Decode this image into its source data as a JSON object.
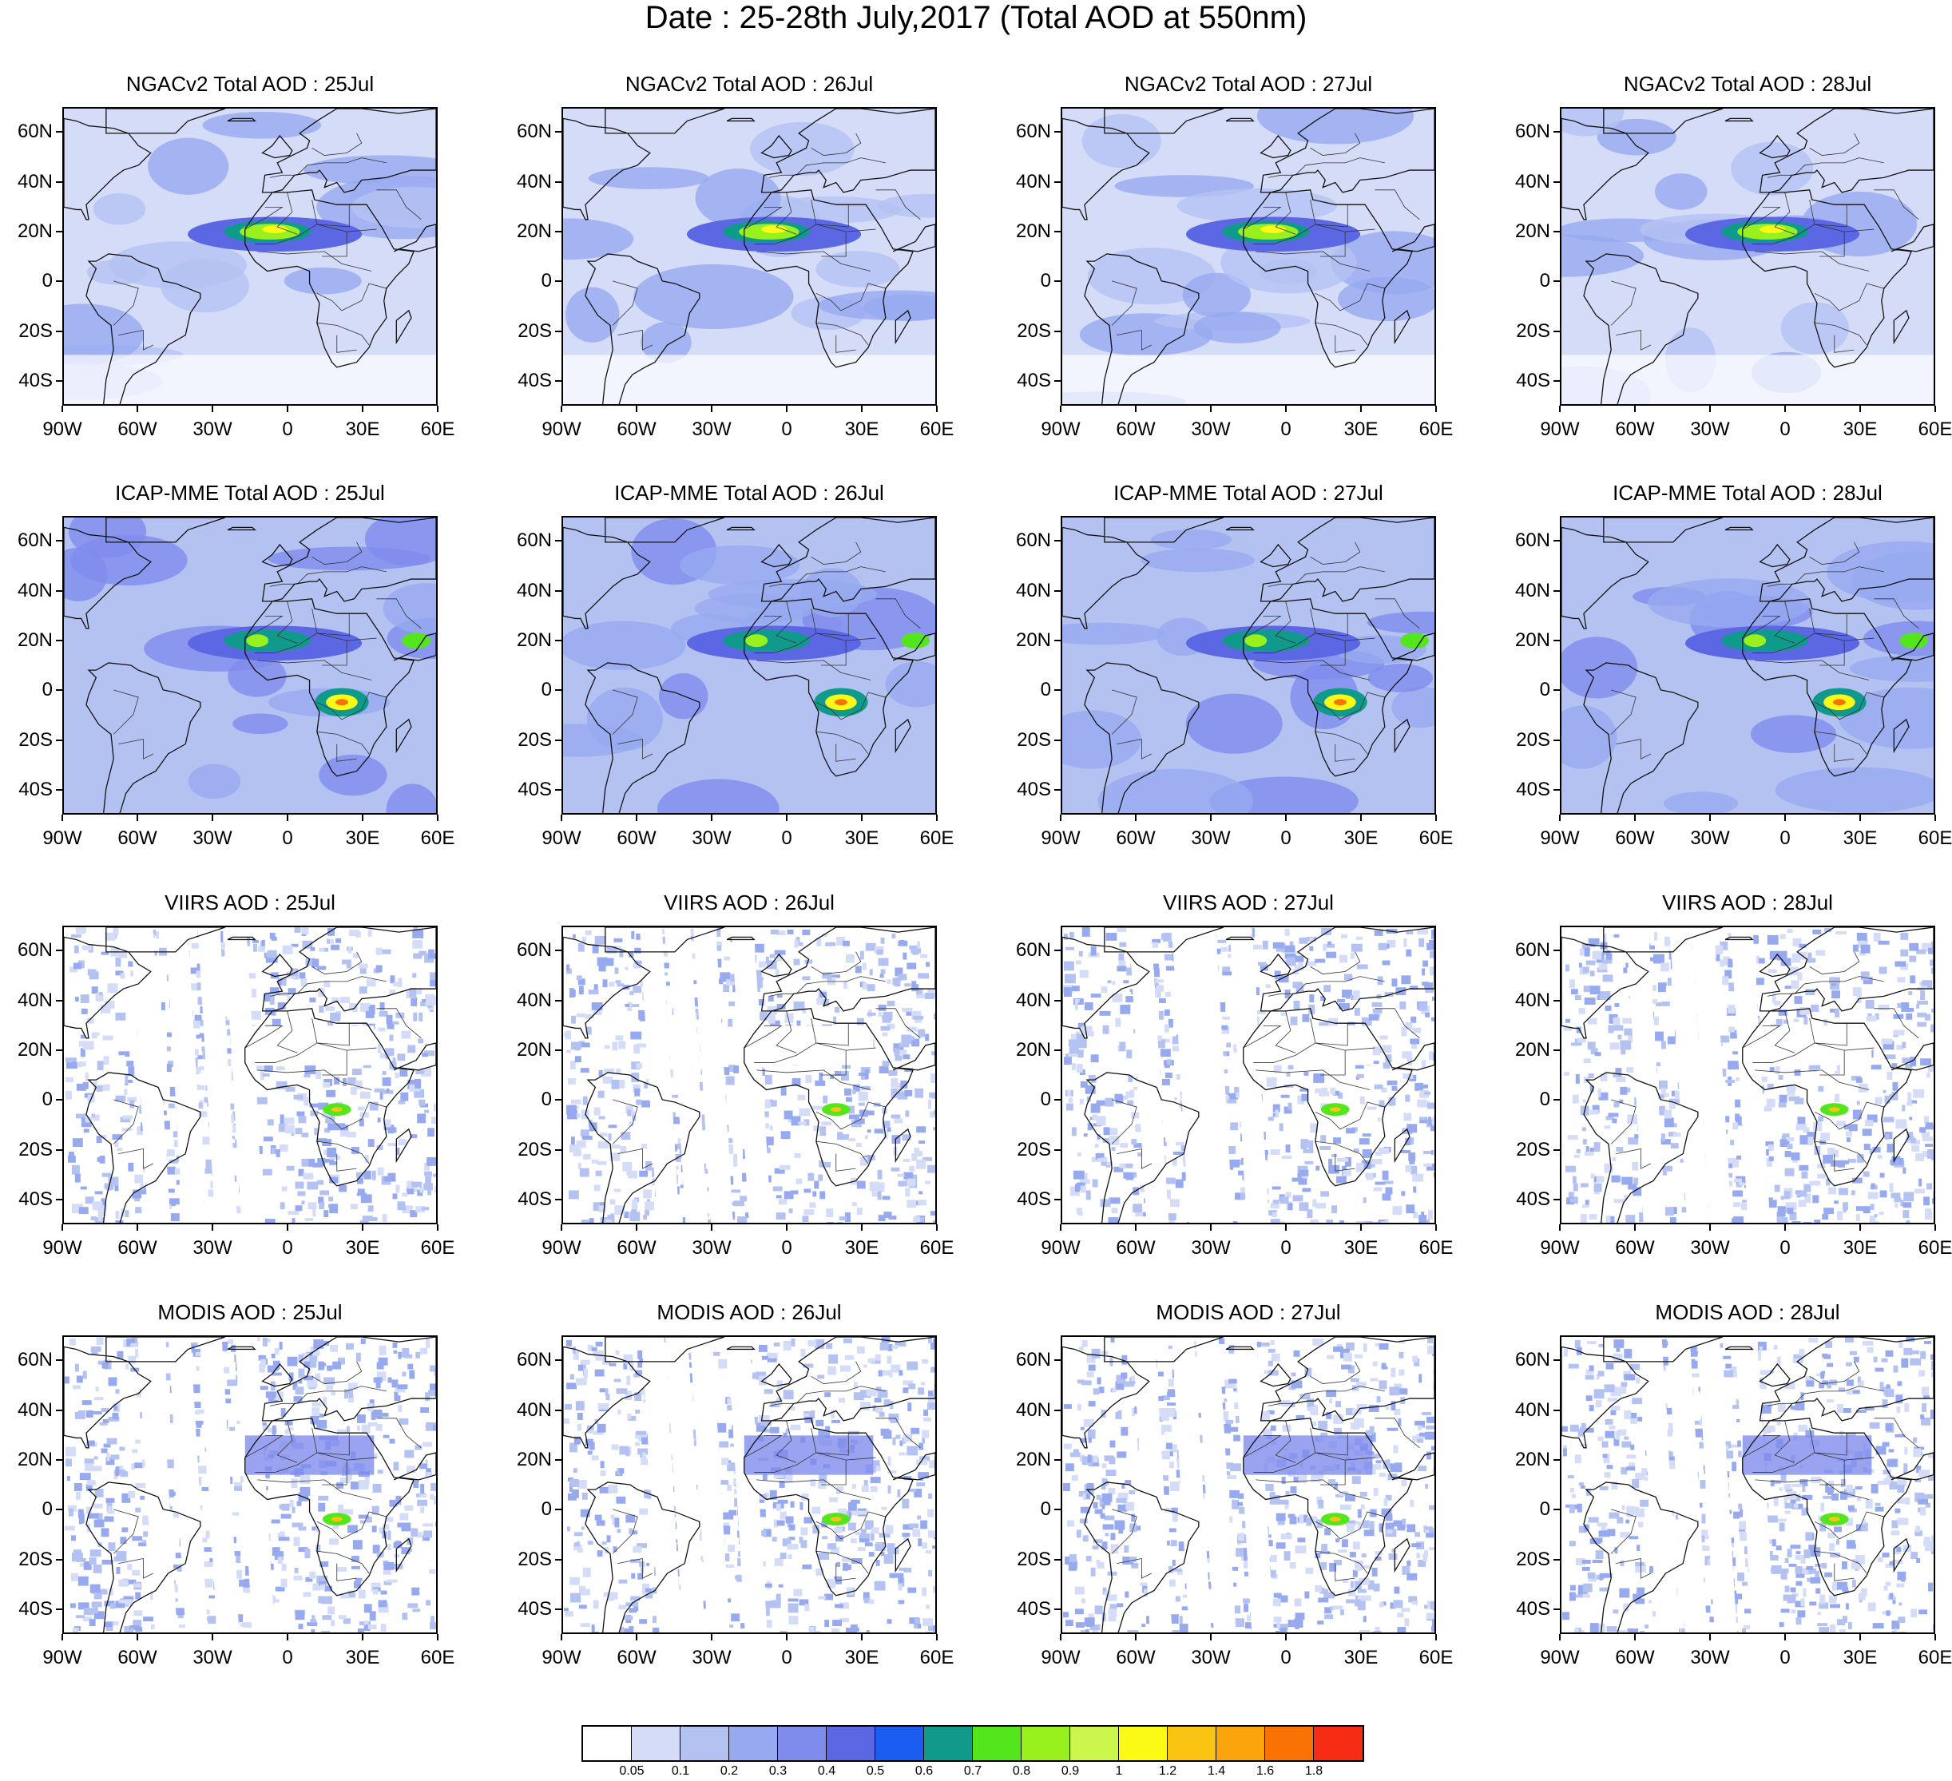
{
  "title": "Date : 25-28th July,2017 (Total AOD at 550nm)",
  "rows": [
    {
      "product": "NGACv2 Total AOD",
      "panels": [
        "NGACv2 Total AOD : 25Jul",
        "NGACv2 Total AOD : 26Jul",
        "NGACv2 Total AOD : 27Jul",
        "NGACv2 Total AOD : 28Jul"
      ]
    },
    {
      "product": "ICAP-MME Total AOD",
      "panels": [
        "ICAP-MME Total AOD : 25Jul",
        "ICAP-MME Total AOD : 26Jul",
        "ICAP-MME Total AOD : 27Jul",
        "ICAP-MME Total AOD : 28Jul"
      ]
    },
    {
      "product": "VIIRS AOD",
      "panels": [
        "VIIRS AOD : 25Jul",
        "VIIRS AOD : 26Jul",
        "VIIRS AOD : 27Jul",
        "VIIRS AOD : 28Jul"
      ]
    },
    {
      "product": "MODIS AOD",
      "panels": [
        "MODIS AOD : 25Jul",
        "MODIS AOD : 26Jul",
        "MODIS AOD : 27Jul",
        "MODIS AOD : 28Jul"
      ]
    }
  ],
  "axes": {
    "lat_labels": [
      "60N",
      "40N",
      "20N",
      "0",
      "20S",
      "40S"
    ],
    "lon_labels": [
      "90W",
      "60W",
      "30W",
      "0",
      "30E",
      "60E"
    ],
    "lat_range": [
      -50,
      70
    ],
    "lon_range": [
      -90,
      60
    ]
  },
  "colorbar": {
    "colors": [
      "#ffffff",
      "#d4dcf8",
      "#b4c2f2",
      "#97aaf0",
      "#7f8cec",
      "#5c67e4",
      "#1b5df0",
      "#0f9a8c",
      "#53e61c",
      "#98f01c",
      "#cbf64c",
      "#fafa16",
      "#fcc412",
      "#fba40c",
      "#f97304",
      "#f72c14"
    ],
    "labels": [
      "0.05",
      "0.1",
      "0.2",
      "0.3",
      "0.4",
      "0.5",
      "0.6",
      "0.7",
      "0.8",
      "0.9",
      "1",
      "1.2",
      "1.4",
      "1.6",
      "1.8"
    ]
  }
}
